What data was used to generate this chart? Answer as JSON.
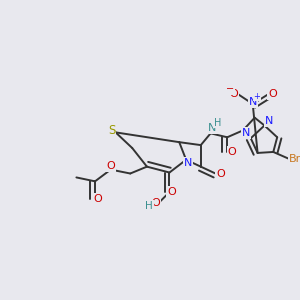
{
  "bg_color": "#e8e8ee",
  "bond_color": "#333333",
  "bond_width": 1.4,
  "figsize": [
    3.0,
    3.0
  ],
  "dpi": 100,
  "colors": {
    "C": "#333333",
    "O": "#cc0000",
    "N": "#1a1aff",
    "S": "#999900",
    "Br": "#c87820",
    "H": "#3a9090",
    "NH": "#3a9090",
    "Nplus": "#1a1aff"
  }
}
